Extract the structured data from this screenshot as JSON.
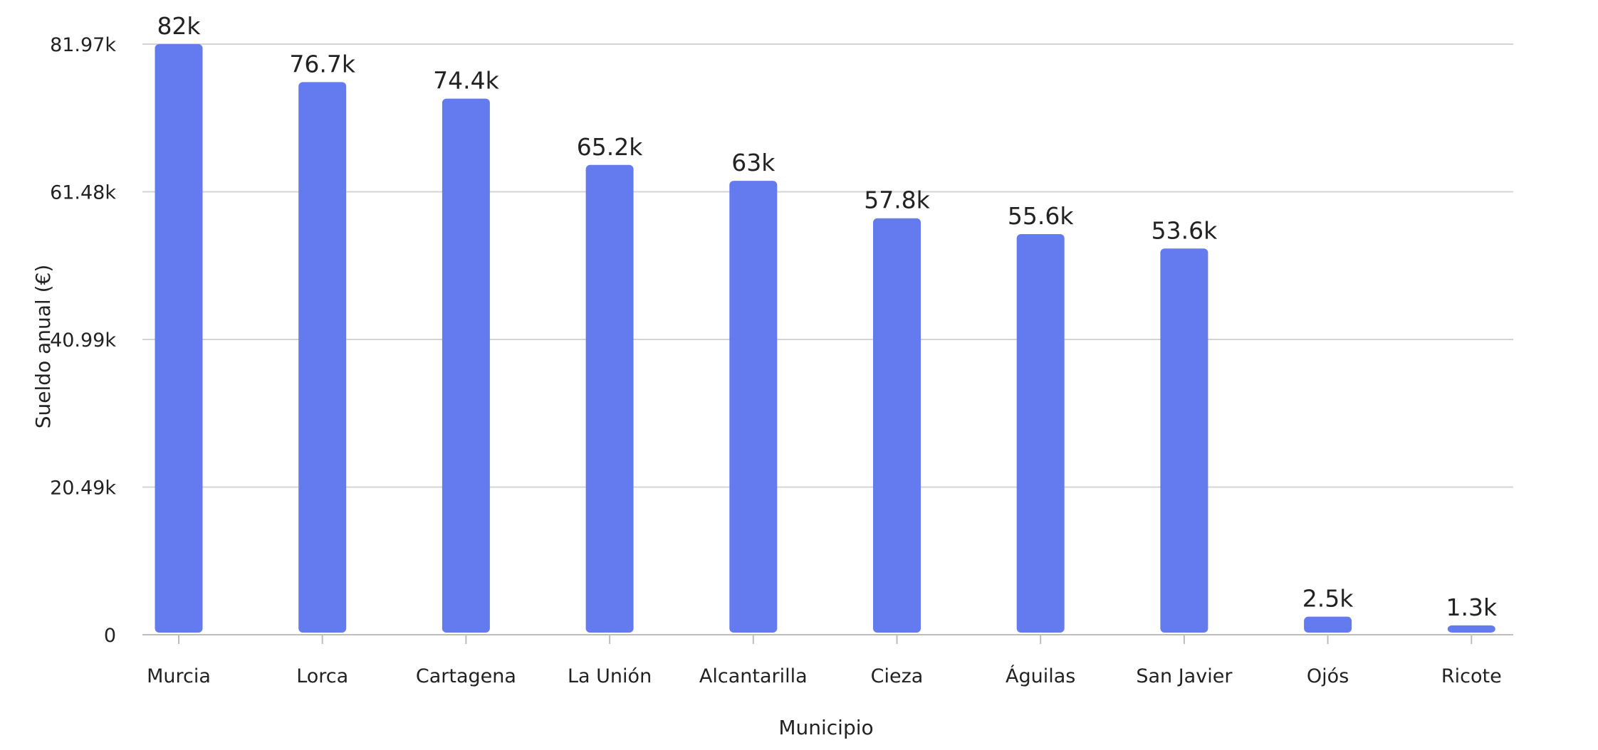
{
  "chart_data": {
    "type": "bar",
    "categories": [
      "Murcia",
      "Lorca",
      "Cartagena",
      "La Unión",
      "Alcantarilla",
      "Cieza",
      "Águilas",
      "San Javier",
      "Ojós",
      "Ricote"
    ],
    "values": [
      81970,
      76700,
      74400,
      65200,
      63000,
      57800,
      55600,
      53600,
      2500,
      1300
    ],
    "data_labels": [
      "82k",
      "76.7k",
      "74.4k",
      "65.2k",
      "63k",
      "57.8k",
      "55.6k",
      "53.6k",
      "2.5k",
      "1.3k"
    ],
    "title": "",
    "xlabel": "Municipio",
    "ylabel": "Sueldo anual (€)",
    "ylim": [
      0,
      81970
    ],
    "yticks": [
      0,
      20490,
      40990,
      61480,
      81970
    ],
    "ytick_labels": [
      "0",
      "20.49k",
      "40.99k",
      "61.48k",
      "81.97k"
    ],
    "grid": true,
    "legend": "none",
    "bar_color": "#647bf0"
  }
}
